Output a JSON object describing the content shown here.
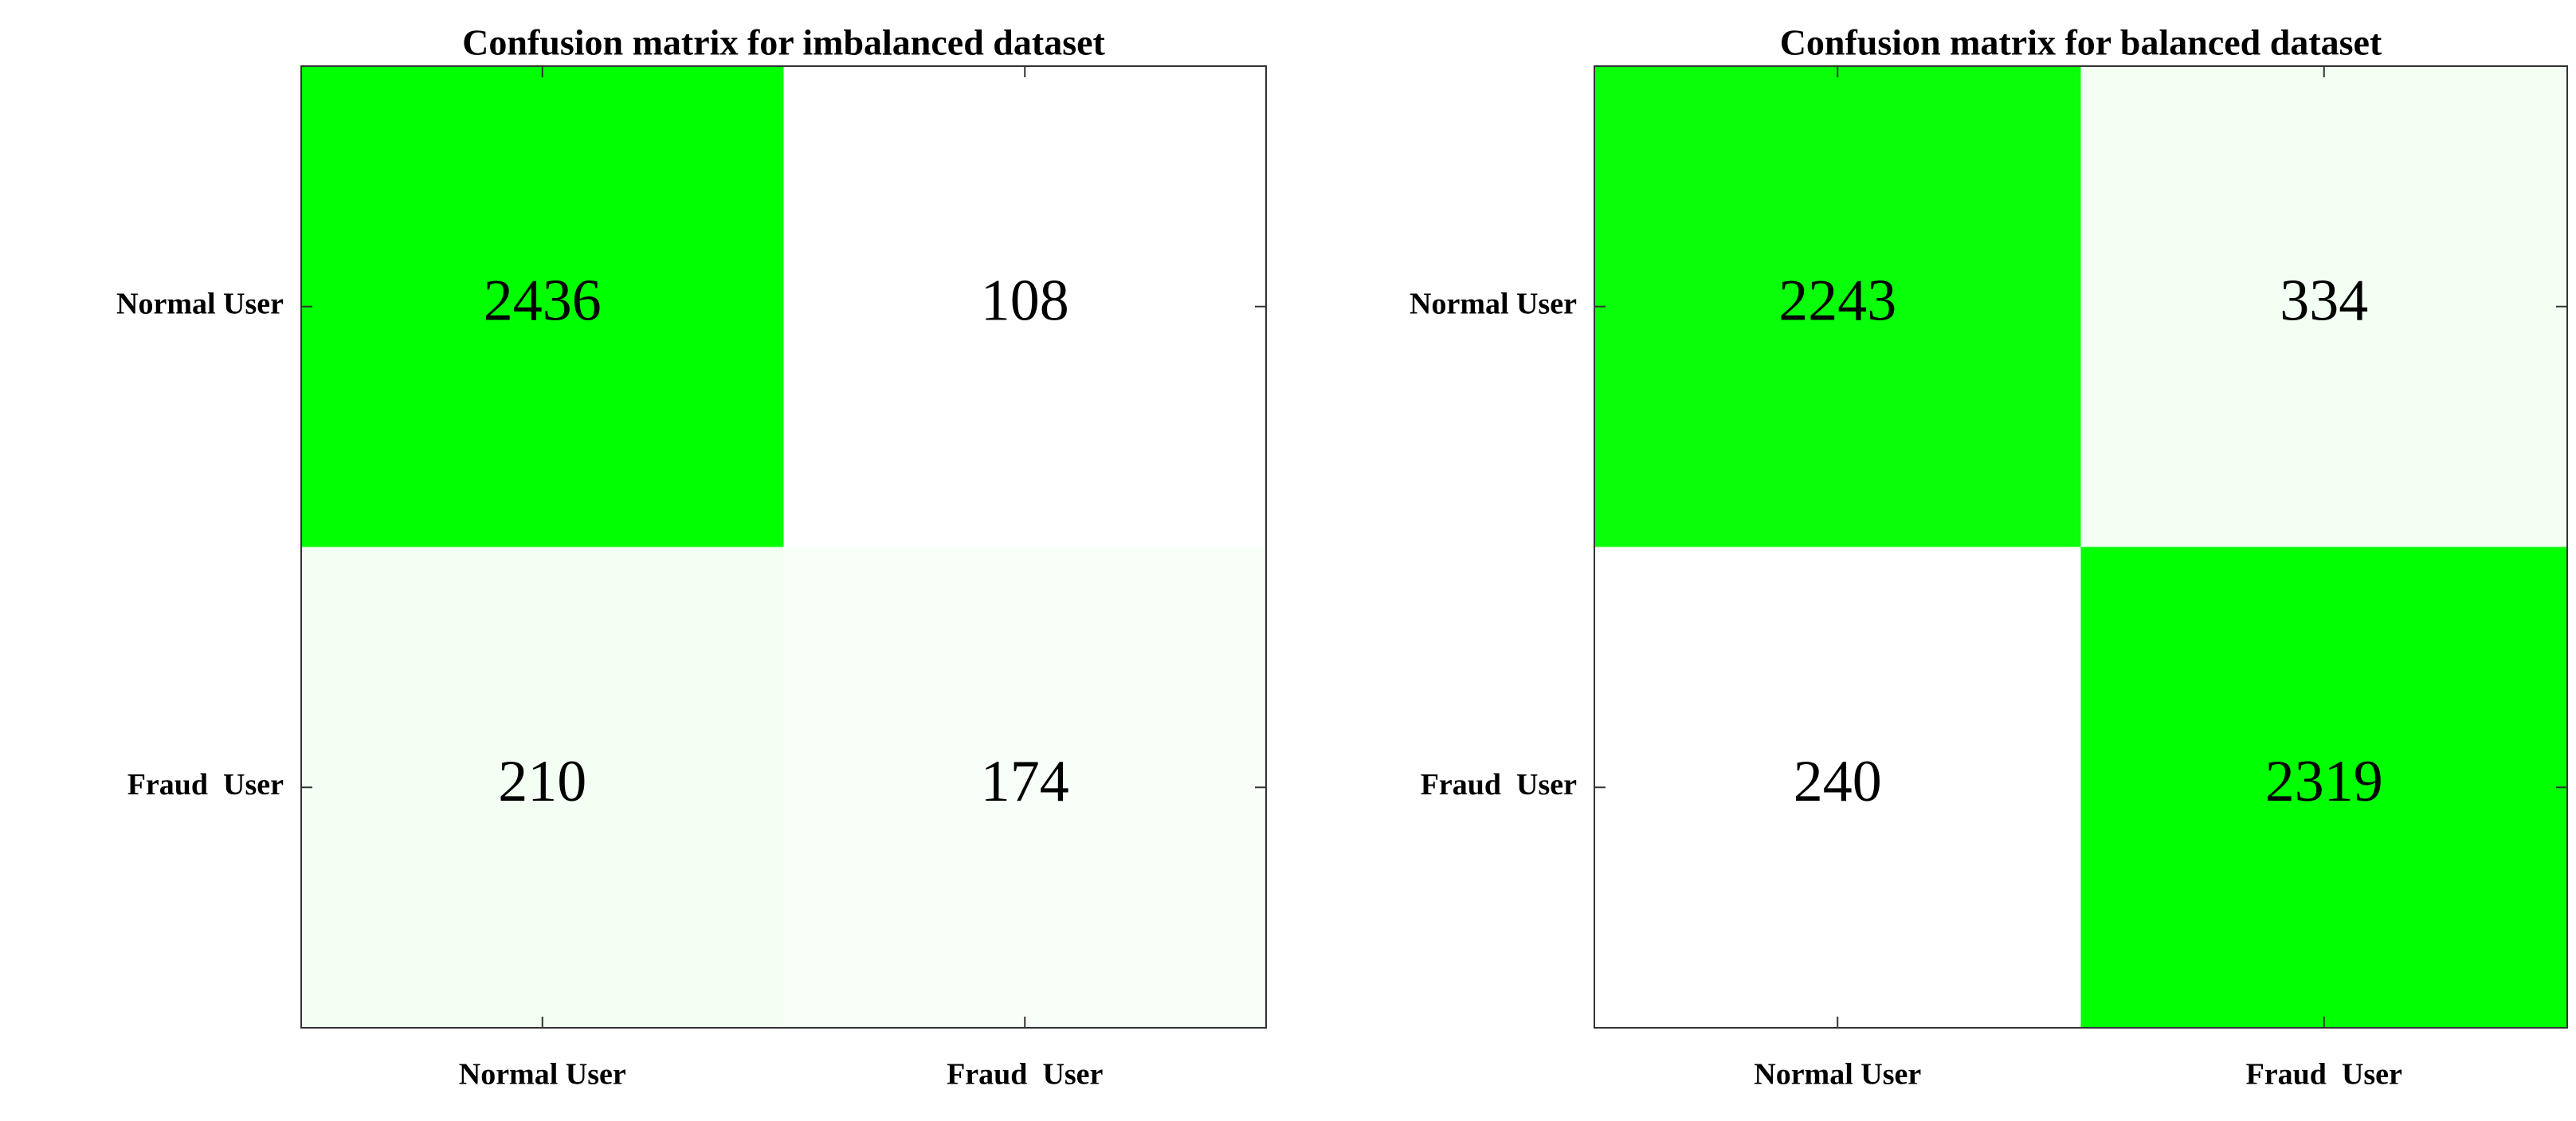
{
  "chart_data": [
    {
      "type": "heatmap",
      "title": "Confusion matrix for imbalanced dataset",
      "x_categories": [
        "Normal User",
        "Fraud  User"
      ],
      "y_categories": [
        "Normal User",
        "Fraud  User"
      ],
      "values": [
        [
          2436,
          108
        ],
        [
          210,
          174
        ]
      ],
      "color_low": "#ffffff",
      "color_high": "#00ff00"
    },
    {
      "type": "heatmap",
      "title": "Confusion matrix for balanced dataset",
      "x_categories": [
        "Normal User",
        "Fraud  User"
      ],
      "y_categories": [
        "Normal User",
        "Fraud  User"
      ],
      "values": [
        [
          2243,
          334
        ],
        [
          240,
          2319
        ]
      ],
      "color_low": "#ffffff",
      "color_high": "#00ff00"
    }
  ]
}
